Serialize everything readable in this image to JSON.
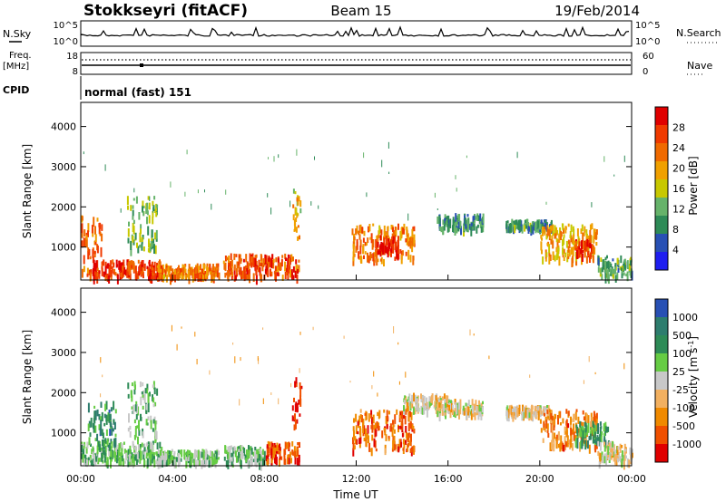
{
  "header": {
    "station": "Stokkseyri (fitACF)",
    "beam": "Beam 15",
    "date": "19/Feb/2014"
  },
  "noise_panel": {
    "left_label": "N.Sky",
    "left_ticks": [
      "10^5",
      "10^0"
    ],
    "right_ticks": [
      "10^5",
      "10^0"
    ],
    "right_label": "N.Search"
  },
  "freq_panel": {
    "left_label_1": "Freq.",
    "left_label_2": "[MHz]",
    "left_ticks": [
      "18",
      "8"
    ],
    "right_ticks": [
      "60",
      "0"
    ],
    "right_label": "Nave"
  },
  "cpid_panel": {
    "label": "CPID",
    "mode_text": "normal (fast) 151"
  },
  "colors": {
    "power_scale": [
      "#1e1ef0",
      "#2850b4",
      "#2e8b57",
      "#66b36a",
      "#c8c800",
      "#f0a000",
      "#f06a00",
      "#f03a00",
      "#e00000"
    ],
    "velocity_scale": [
      "#e00000",
      "#f05000",
      "#f08a00",
      "#f2b060",
      "#c8c8c8",
      "#66cc44",
      "#2e8b57",
      "#2e7d6e",
      "#2850b4"
    ],
    "ground_scatter": "#c8c8c8"
  },
  "chart_data": [
    {
      "type": "heatmap",
      "name": "power",
      "ylabel": "Slant Range [km]",
      "yticks": [
        "4000",
        "3000",
        "2000",
        "1000"
      ],
      "ylim": [
        180,
        4600
      ],
      "xlim_hours": [
        0,
        24
      ],
      "colorbar_label": "Power [dB]",
      "colorbar_ticks": [
        "28",
        "24",
        "20",
        "16",
        "12",
        "8",
        "4"
      ],
      "colorbar_range": [
        0,
        32
      ],
      "regions": [
        {
          "t": [
            0.0,
            0.9
          ],
          "r": [
            300,
            1800
          ],
          "level": 0.75
        },
        {
          "t": [
            0.5,
            3.5
          ],
          "r": [
            300,
            700
          ],
          "level": 0.85
        },
        {
          "t": [
            2.0,
            3.3
          ],
          "r": [
            900,
            2300
          ],
          "level": 0.4
        },
        {
          "t": [
            3.3,
            6.0
          ],
          "r": [
            300,
            600
          ],
          "level": 0.7
        },
        {
          "t": [
            6.2,
            9.5
          ],
          "r": [
            300,
            850
          ],
          "level": 0.8
        },
        {
          "t": [
            9.2,
            9.6
          ],
          "r": [
            1200,
            2500
          ],
          "level": 0.55
        },
        {
          "t": [
            11.8,
            14.5
          ],
          "r": [
            700,
            1600
          ],
          "level": 0.7
        },
        {
          "t": [
            12.8,
            13.8
          ],
          "r": [
            900,
            1300
          ],
          "level": 0.95
        },
        {
          "t": [
            15.5,
            17.5
          ],
          "r": [
            1500,
            1850
          ],
          "level": 0.3
        },
        {
          "t": [
            18.5,
            20.5
          ],
          "r": [
            1500,
            1700
          ],
          "level": 0.3
        },
        {
          "t": [
            20.0,
            22.5
          ],
          "r": [
            700,
            1600
          ],
          "level": 0.6
        },
        {
          "t": [
            21.5,
            22.3
          ],
          "r": [
            800,
            1200
          ],
          "level": 0.85
        },
        {
          "t": [
            22.5,
            24.0
          ],
          "r": [
            300,
            800
          ],
          "level": 0.35
        }
      ]
    },
    {
      "type": "heatmap",
      "name": "velocity",
      "ylabel": "Slant Range [km]",
      "yticks": [
        "4000",
        "3000",
        "2000",
        "1000"
      ],
      "ylim": [
        180,
        4600
      ],
      "xlim_hours": [
        0,
        24
      ],
      "xticks": [
        "00:00",
        "04:00",
        "08:00",
        "12:00",
        "16:00",
        "20:00",
        "00:00"
      ],
      "xlabel": "Time UT",
      "colorbar_label": "Velocity [m s",
      "colorbar_label_sup": "-1",
      "colorbar_label_end": "]",
      "colorbar_ticks": [
        "1000",
        "500",
        "100",
        "25",
        "-25",
        "-100",
        "-500",
        "-1000"
      ],
      "regions": [
        {
          "t": [
            0.0,
            3.5
          ],
          "r": [
            300,
            800
          ],
          "v": 0.62
        },
        {
          "t": [
            0.3,
            1.5
          ],
          "r": [
            700,
            1800
          ],
          "v": 0.75
        },
        {
          "t": [
            2.0,
            3.3
          ],
          "r": [
            900,
            2300
          ],
          "v": 0.62
        },
        {
          "t": [
            3.3,
            6.0
          ],
          "r": [
            300,
            600
          ],
          "v": 0.6
        },
        {
          "t": [
            6.2,
            8.0
          ],
          "r": [
            300,
            700
          ],
          "v": 0.62
        },
        {
          "t": [
            8.0,
            9.5
          ],
          "r": [
            350,
            800
          ],
          "v": 0.15
        },
        {
          "t": [
            9.2,
            9.6
          ],
          "r": [
            1200,
            2500
          ],
          "v": 0.05
        },
        {
          "t": [
            11.8,
            14.5
          ],
          "r": [
            600,
            1600
          ],
          "v": 0.2
        },
        {
          "t": [
            14.0,
            16.0
          ],
          "r": [
            1600,
            2000
          ],
          "v": 0.45
        },
        {
          "t": [
            15.5,
            17.5
          ],
          "r": [
            1500,
            1850
          ],
          "v": 0.45
        },
        {
          "t": [
            18.5,
            20.5
          ],
          "r": [
            1500,
            1700
          ],
          "v": 0.45
        },
        {
          "t": [
            20.0,
            22.5
          ],
          "r": [
            700,
            1600
          ],
          "v": 0.25
        },
        {
          "t": [
            21.5,
            23.0
          ],
          "r": [
            800,
            1300
          ],
          "v": 0.72
        },
        {
          "t": [
            22.5,
            24.0
          ],
          "r": [
            300,
            800
          ],
          "v": 0.45
        }
      ]
    }
  ]
}
